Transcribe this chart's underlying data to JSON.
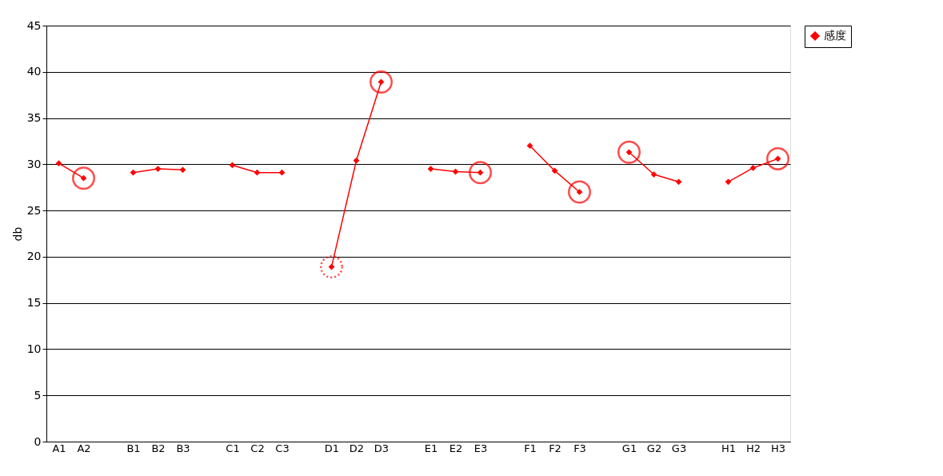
{
  "chart_data": {
    "type": "line",
    "ylabel": "db",
    "categories": [
      "A1",
      "A2",
      null,
      "B1",
      "B2",
      "B3",
      null,
      "C1",
      "C2",
      "C3",
      null,
      "D1",
      "D2",
      "D3",
      null,
      "E1",
      "E2",
      "E3",
      null,
      "F1",
      "F2",
      "F3",
      null,
      "G1",
      "G2",
      "G3",
      null,
      "H1",
      "H2",
      "H3"
    ],
    "series": [
      {
        "name": "感度",
        "color": "#ff0000",
        "marker": "diamond",
        "line_style": "solid",
        "values": [
          30.1,
          28.5,
          null,
          29.1,
          29.5,
          29.4,
          null,
          29.9,
          29.1,
          29.1,
          null,
          18.9,
          30.4,
          38.9,
          null,
          29.5,
          29.2,
          29.1,
          null,
          32.0,
          29.3,
          27.0,
          null,
          31.3,
          28.9,
          28.1,
          null,
          28.1,
          29.6,
          30.6
        ]
      },
      {
        "color": "#ff0000",
        "type": "scatter",
        "line_style": "solid",
        "values": [
          null,
          28.5,
          null,
          null,
          null,
          null,
          null,
          null,
          null,
          null,
          null,
          null,
          null,
          38.9,
          null,
          null,
          null,
          29.1,
          null,
          null,
          null,
          27.0,
          null,
          31.3,
          null,
          null,
          null,
          null,
          null,
          30.6
        ]
      },
      {
        "color": "#ff0000",
        "type": "scatter",
        "line_style": "dotted",
        "values": [
          null,
          null,
          null,
          null,
          null,
          null,
          null,
          null,
          null,
          null,
          null,
          18.9,
          null,
          null,
          null,
          null,
          null,
          null,
          null,
          null,
          null,
          null,
          null,
          null,
          null,
          null,
          null,
          null,
          null,
          null
        ]
      }
    ],
    "ylim": [
      0,
      45
    ],
    "yticks": [
      0,
      5,
      10,
      15,
      20,
      25,
      30,
      35,
      40,
      45
    ],
    "grid": "y",
    "legend": "right"
  }
}
